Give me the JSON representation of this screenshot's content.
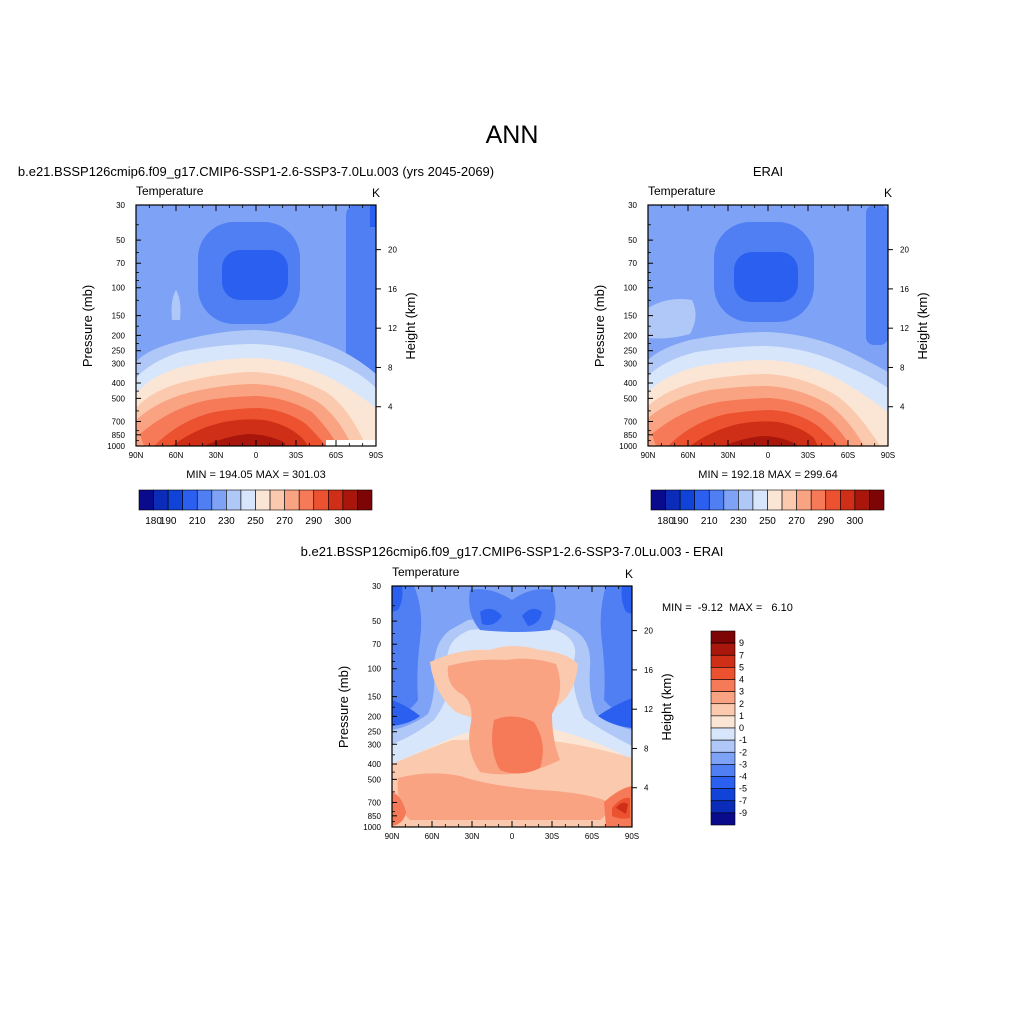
{
  "page": {
    "title": "ANN"
  },
  "colors": {
    "mean_palette": [
      "#0a0a8c",
      "#0b2cb8",
      "#1243d8",
      "#2a5ff0",
      "#4f7ff2",
      "#7ea2f5",
      "#b0c8f8",
      "#d8e6fb",
      "#fbe6d6",
      "#fbc9ad",
      "#f9a383",
      "#f67a57",
      "#ec522f",
      "#cf2f17",
      "#a8160c",
      "#7d0505"
    ],
    "diff_palette": [
      "#0a0a8c",
      "#0b2cb8",
      "#1243d8",
      "#2a5ff0",
      "#4f7ff2",
      "#7ea2f5",
      "#b0c8f8",
      "#d8e6fb",
      "#fbe6d6",
      "#fbc9ad",
      "#f9a383",
      "#f67a57",
      "#ec522f",
      "#cf2f17",
      "#a8160c",
      "#7d0505"
    ]
  },
  "chart_data": [
    {
      "id": "model",
      "type": "heatmap",
      "header": "b.e21.BSSP126cmip6.f09_g17.CMIP6-SSP1-2.6-SSP3-7.0Lu.003 (yrs 2045-2069)",
      "title": "Temperature",
      "units": "K",
      "ylabel": "Pressure (mb)",
      "y2label": "Height (km)",
      "xticks": [
        "90N",
        "60N",
        "30N",
        "0",
        "30S",
        "60S",
        "90S"
      ],
      "yticks": [
        "30",
        "50",
        "70",
        "100",
        "150",
        "200",
        "250",
        "300",
        "400",
        "500",
        "700",
        "850",
        "1000"
      ],
      "y2ticks": [
        "20",
        "16",
        "12",
        "8",
        "4"
      ],
      "stats": "MIN = 194.05  MAX = 301.03",
      "min": 194.05,
      "max": 301.03,
      "colorbar_labels": [
        "180",
        "190",
        "210",
        "230",
        "250",
        "270",
        "290",
        "300"
      ]
    },
    {
      "id": "obs",
      "type": "heatmap",
      "header": "ERAI",
      "title": "Temperature",
      "units": "K",
      "ylabel": "Pressure (mb)",
      "y2label": "Height (km)",
      "xticks": [
        "90N",
        "60N",
        "30N",
        "0",
        "30S",
        "60S",
        "90S"
      ],
      "yticks": [
        "30",
        "50",
        "70",
        "100",
        "150",
        "200",
        "250",
        "300",
        "400",
        "500",
        "700",
        "850",
        "1000"
      ],
      "y2ticks": [
        "20",
        "16",
        "12",
        "8",
        "4"
      ],
      "stats": "MIN = 192.18  MAX = 299.64",
      "min": 192.18,
      "max": 299.64,
      "colorbar_labels": [
        "180",
        "190",
        "210",
        "230",
        "250",
        "270",
        "290",
        "300"
      ]
    },
    {
      "id": "diff",
      "type": "heatmap",
      "header": "b.e21.BSSP126cmip6.f09_g17.CMIP6-SSP1-2.6-SSP3-7.0Lu.003 - ERAI",
      "title": "Temperature",
      "units": "K",
      "ylabel": "Pressure (mb)",
      "y2label": "Height (km)",
      "xticks": [
        "90N",
        "60N",
        "30N",
        "0",
        "30S",
        "60S",
        "90S"
      ],
      "yticks": [
        "30",
        "50",
        "70",
        "100",
        "150",
        "200",
        "250",
        "300",
        "400",
        "500",
        "700",
        "850",
        "1000"
      ],
      "y2ticks": [
        "20",
        "16",
        "12",
        "8",
        "4"
      ],
      "stats": "MIN =  -9.12  MAX =   6.10",
      "min": -9.12,
      "max": 6.1,
      "colorbar_labels": [
        "9",
        "7",
        "5",
        "4",
        "3",
        "2",
        "1",
        "0",
        "-1",
        "-2",
        "-3",
        "-4",
        "-5",
        "-7",
        "-9"
      ]
    }
  ]
}
